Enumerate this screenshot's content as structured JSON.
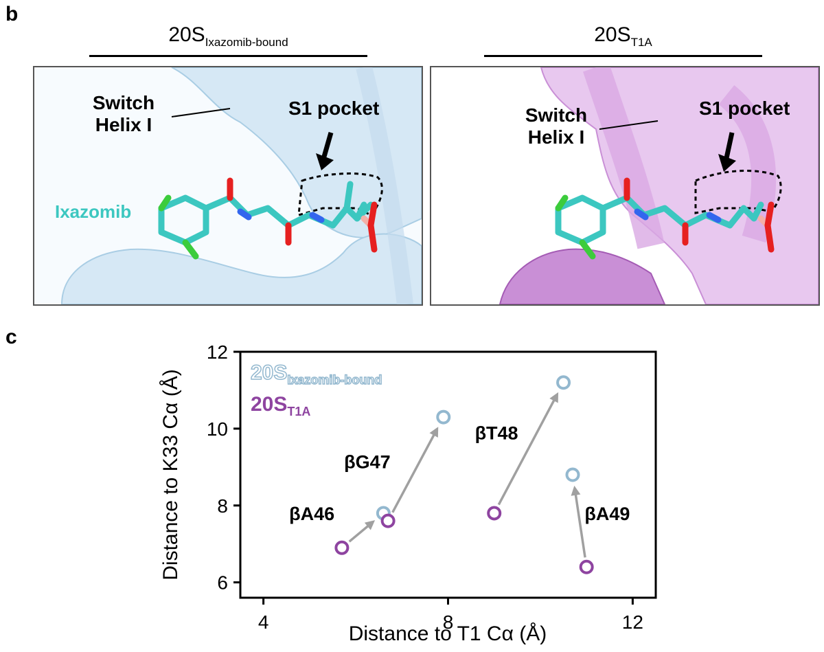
{
  "panel_b": {
    "letter": "b",
    "left": {
      "title_main": "20S",
      "title_sub": "Ixazomib-bound",
      "switch_label_line1": "Switch",
      "switch_label_line2": "Helix I",
      "pocket_label": "S1 pocket",
      "ligand_label": "Ixazomib",
      "surface_color": "#d6e8f5",
      "ligand_color": "#3cc7c0"
    },
    "right": {
      "title_main": "20S",
      "title_sub": "T1A",
      "switch_label_line1": "Switch",
      "switch_label_line2": "Helix I",
      "pocket_label": "S1 pocket",
      "surface_color": "#c98fd6"
    }
  },
  "panel_c": {
    "letter": "c",
    "chart_data": {
      "type": "scatter",
      "xlabel": "Distance to T1 Cα (Å)",
      "ylabel": "Distance to K33 Cα (Å)",
      "xlim": [
        3.5,
        12.5
      ],
      "ylim": [
        5.6,
        12.0
      ],
      "xticks": [
        4,
        8,
        12
      ],
      "yticks": [
        6,
        8,
        10,
        12
      ],
      "grid": false,
      "legend_position": "top-left",
      "series": [
        {
          "name_main": "20S",
          "name_sub": "Ixazomib-bound",
          "color": "#93b8cf",
          "points": [
            {
              "x": 6.6,
              "y": 7.8
            },
            {
              "x": 7.9,
              "y": 10.3
            },
            {
              "x": 10.5,
              "y": 11.2
            },
            {
              "x": 10.7,
              "y": 8.8
            }
          ]
        },
        {
          "name_main": "20S",
          "name_sub": "T1A",
          "color": "#8e44a0",
          "points": [
            {
              "x": 5.7,
              "y": 6.9
            },
            {
              "x": 6.7,
              "y": 7.6
            },
            {
              "x": 9.0,
              "y": 7.8
            },
            {
              "x": 11.0,
              "y": 6.4
            }
          ]
        }
      ],
      "arrows": [
        {
          "from": [
            5.7,
            6.9
          ],
          "to": [
            6.6,
            7.8
          ]
        },
        {
          "from": [
            6.7,
            7.6
          ],
          "to": [
            7.9,
            10.3
          ]
        },
        {
          "from": [
            9.0,
            7.8
          ],
          "to": [
            10.5,
            11.2
          ]
        },
        {
          "from": [
            11.0,
            6.4
          ],
          "to": [
            10.7,
            8.8
          ]
        }
      ],
      "annotations": [
        {
          "text": "βA46",
          "x": 5.05,
          "y": 7.8
        },
        {
          "text": "βG47",
          "x": 6.25,
          "y": 9.15
        },
        {
          "text": "βT48",
          "x": 9.05,
          "y": 9.9
        },
        {
          "text": "βA49",
          "x": 11.45,
          "y": 7.8
        }
      ]
    }
  }
}
